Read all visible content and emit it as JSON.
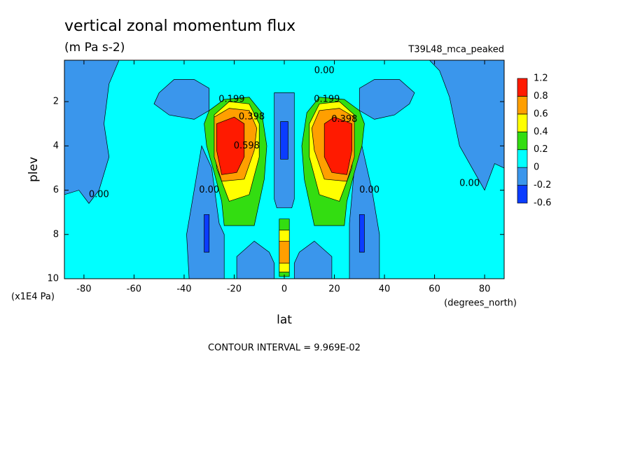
{
  "chart_data": {
    "type": "contour",
    "title": "vertical zonal momentum flux",
    "subtitle": "(m Pa s-2)",
    "dataset": "T39L48_mca_peaked",
    "xlabel": "lat",
    "ylabel": "plev",
    "x_units": "(degrees_north)",
    "y_units": "(x1E4 Pa)",
    "footer": "CONTOUR INTERVAL = 9.969E-02",
    "xlim": [
      -87.8,
      87.8
    ],
    "ylim": [
      10,
      0.13
    ],
    "xticks": [
      -80,
      -60,
      -40,
      -20,
      0,
      20,
      40,
      60,
      80
    ],
    "yticks": [
      2,
      4,
      6,
      8,
      10
    ],
    "background_value": 0,
    "levels": [
      -0.6,
      -0.2,
      0,
      0.2,
      0.4,
      0.6,
      0.8,
      1.2
    ],
    "colors": [
      "#0a3cff",
      "#3a96ec",
      "#00ffff",
      "#33dd11",
      "#ffff00",
      "#ff9f00",
      "#ff1a00"
    ],
    "regions": [
      {
        "value": -0.2,
        "lat": [
          -87.8,
          -66,
          -70,
          -72,
          -70,
          -74,
          -78,
          -82,
          -87.8
        ],
        "plev": [
          0.13,
          0.13,
          1.2,
          3,
          4.5,
          6.0,
          6.6,
          6.0,
          6.2
        ]
      },
      {
        "value": -0.2,
        "lat": [
          58,
          87.8,
          87.8,
          84,
          80,
          76,
          70,
          66,
          64,
          62
        ],
        "plev": [
          0.13,
          0.13,
          5.0,
          4.8,
          6.0,
          5.2,
          4.0,
          1.8,
          1.2,
          0.6
        ]
      },
      {
        "value": -0.2,
        "lat": [
          -50,
          -44,
          -36,
          -30,
          -30,
          -36,
          -46,
          -52
        ],
        "plev": [
          1.6,
          1.0,
          1.0,
          1.4,
          2.4,
          2.8,
          2.6,
          2.1
        ]
      },
      {
        "value": -0.2,
        "lat": [
          30,
          36,
          46,
          52,
          50,
          44,
          36,
          30
        ],
        "plev": [
          1.4,
          1.0,
          1.0,
          1.6,
          2.1,
          2.6,
          2.8,
          2.4
        ]
      },
      {
        "value": -0.2,
        "lat": [
          -4,
          4,
          4,
          3,
          -3,
          -4
        ],
        "plev": [
          1.6,
          1.6,
          6.4,
          6.8,
          6.8,
          6.4
        ]
      },
      {
        "value": -0.2,
        "lat": [
          -33,
          -29,
          -26,
          -24,
          -24,
          -38,
          -39,
          -36
        ],
        "plev": [
          4.0,
          5.0,
          7.5,
          8.0,
          10,
          10,
          8,
          6
        ]
      },
      {
        "value": -0.2,
        "lat": [
          31,
          35,
          38,
          38,
          26,
          26,
          28
        ],
        "plev": [
          4.0,
          6.0,
          8.0,
          10,
          10,
          7.5,
          5.0
        ]
      },
      {
        "value": -0.2,
        "lat": [
          -19,
          -12,
          -6,
          -4,
          -4,
          -19
        ],
        "plev": [
          9.0,
          8.3,
          8.8,
          9.3,
          10,
          10
        ]
      },
      {
        "value": -0.2,
        "lat": [
          4,
          6,
          12,
          19,
          19,
          4
        ],
        "plev": [
          9.3,
          8.8,
          8.3,
          9.0,
          10,
          10
        ]
      },
      {
        "value": -0.6,
        "lat": [
          -1.5,
          1.5,
          1.5,
          -1.5
        ],
        "plev": [
          2.9,
          2.9,
          4.6,
          4.6
        ]
      },
      {
        "value": -0.6,
        "lat": [
          -32,
          -30,
          -30,
          -32
        ],
        "plev": [
          7.1,
          7.1,
          8.8,
          8.8
        ]
      },
      {
        "value": -0.6,
        "lat": [
          30,
          32,
          32,
          30
        ],
        "plev": [
          7.1,
          7.1,
          8.8,
          8.8
        ]
      },
      {
        "value": 0.2,
        "lat": [
          -30,
          -24,
          -14,
          -9,
          -7,
          -8,
          -12,
          -24,
          -25,
          -28,
          -31,
          -32
        ],
        "plev": [
          2.4,
          1.9,
          1.8,
          2.5,
          4,
          5.5,
          7.6,
          7.6,
          6.5,
          5.2,
          4,
          3
        ]
      },
      {
        "value": 0.4,
        "lat": [
          -28,
          -22,
          -14,
          -10,
          -10,
          -14,
          -22,
          -27
        ],
        "plev": [
          2.6,
          2.0,
          2.1,
          3.0,
          4.5,
          6.2,
          6.5,
          5
        ]
      },
      {
        "value": 0.6,
        "lat": [
          -28,
          -22,
          -14,
          -11,
          -12,
          -16,
          -25,
          -28
        ],
        "plev": [
          2.7,
          2.3,
          2.4,
          3.2,
          4.2,
          5.5,
          5.6,
          4.5
        ]
      },
      {
        "value": 0.8,
        "lat": [
          -27,
          -20,
          -16,
          -16,
          -19,
          -25,
          -27
        ],
        "plev": [
          3.0,
          2.7,
          3.0,
          4.5,
          5.2,
          5.3,
          4.2
        ]
      },
      {
        "value": 0.2,
        "lat": [
          30,
          24,
          14,
          9,
          7,
          8,
          12,
          24,
          25,
          28,
          31,
          32
        ],
        "plev": [
          2.4,
          1.9,
          1.8,
          2.5,
          4,
          5.5,
          7.6,
          7.6,
          6.5,
          5.2,
          4,
          3
        ]
      },
      {
        "value": 0.4,
        "lat": [
          28,
          22,
          14,
          10,
          10,
          14,
          22,
          27
        ],
        "plev": [
          2.6,
          2.0,
          2.1,
          3.0,
          4.5,
          6.2,
          6.5,
          5
        ]
      },
      {
        "value": 0.6,
        "lat": [
          28,
          22,
          14,
          11,
          12,
          16,
          25,
          28
        ],
        "plev": [
          2.7,
          2.3,
          2.4,
          3.2,
          4.2,
          5.5,
          5.6,
          4.5
        ]
      },
      {
        "value": 0.8,
        "lat": [
          27,
          20,
          16,
          16,
          19,
          25,
          27
        ],
        "plev": [
          3.0,
          2.7,
          3.0,
          4.5,
          5.2,
          5.3,
          4.2
        ]
      },
      {
        "value": 0.2,
        "lat": [
          -2,
          2,
          2,
          -2
        ],
        "plev": [
          7.3,
          7.3,
          9.9,
          9.9
        ]
      },
      {
        "value": 0.4,
        "lat": [
          -2,
          2,
          2,
          -2
        ],
        "plev": [
          7.8,
          7.8,
          9.7,
          9.7
        ]
      },
      {
        "value": 0.6,
        "lat": [
          -2,
          2,
          2,
          -2
        ],
        "plev": [
          8.3,
          8.3,
          9.3,
          9.3
        ]
      }
    ],
    "contour_labels": [
      {
        "text": "0.00",
        "lat": 16,
        "plev": 0.6
      },
      {
        "text": "0.199",
        "lat": -21,
        "plev": 1.9
      },
      {
        "text": "0.199",
        "lat": 17,
        "plev": 1.9
      },
      {
        "text": "0.398",
        "lat": -13,
        "plev": 2.7
      },
      {
        "text": "0.598",
        "lat": -15,
        "plev": 4.0
      },
      {
        "text": "0.398",
        "lat": 24,
        "plev": 2.8
      },
      {
        "text": "0.00",
        "lat": -74,
        "plev": 6.2
      },
      {
        "text": "0.00",
        "lat": -30,
        "plev": 6.0
      },
      {
        "text": "0.00",
        "lat": 34,
        "plev": 6.0
      },
      {
        "text": "0.00",
        "lat": 74,
        "plev": 5.7
      }
    ]
  }
}
